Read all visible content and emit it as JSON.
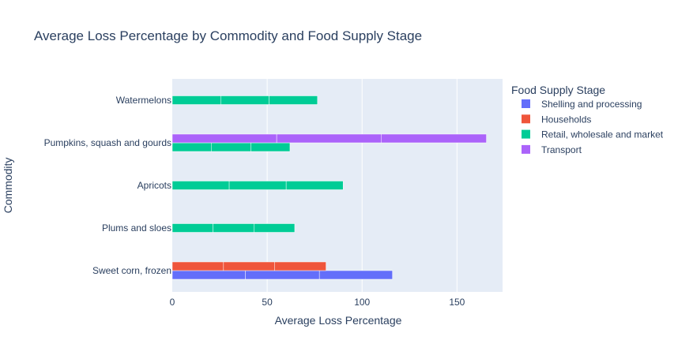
{
  "chart_data": {
    "type": "bar",
    "orientation": "horizontal",
    "barmode": "stacked-segments-grouped",
    "title": "Average Loss Percentage by Commodity and Food Supply Stage",
    "xlabel": "Average Loss Percentage",
    "ylabel": "Commodity",
    "xlim": [
      0,
      174
    ],
    "xticks": [
      0,
      50,
      100,
      150
    ],
    "grid": true,
    "legend_title": "Food Supply Stage",
    "legend_position": "right",
    "categories": [
      "Sweet corn, frozen",
      "Plums and sloes",
      "Apricots",
      "Pumpkins, squash and gourds",
      "Watermelons"
    ],
    "series": [
      {
        "name": "Shelling and processing",
        "color": "#636efa",
        "segments": [
          [
            38.5,
            39,
            38.5
          ],
          [],
          [],
          [],
          []
        ]
      },
      {
        "name": "Households",
        "color": "#ef553b",
        "segments": [
          [
            27,
            27,
            27
          ],
          [],
          [],
          [],
          []
        ]
      },
      {
        "name": "Retail, wholesale and market",
        "color": "#00cc96",
        "segments": [
          [],
          [
            21.5,
            21.5,
            21.5
          ],
          [
            30,
            30,
            30
          ],
          [
            20.5,
            21,
            20.5
          ],
          [
            25.5,
            25.5,
            25.5
          ]
        ]
      },
      {
        "name": "Transport",
        "color": "#ab63fa",
        "segments": [
          [],
          [],
          [],
          [
            55,
            55,
            55.5
          ],
          []
        ]
      }
    ]
  }
}
